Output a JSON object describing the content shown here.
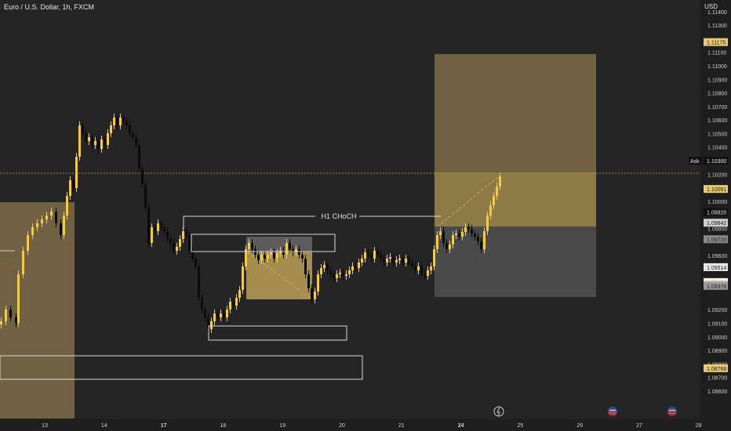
{
  "header": {
    "title": "Euro / U.S. Dollar, 1h, FXCM",
    "currency": "USD"
  },
  "price_axis": {
    "ticks": [
      {
        "label": "1.11400",
        "v": 1.114
      },
      {
        "label": "1.11300",
        "v": 1.113
      },
      {
        "label": "1.11100",
        "v": 1.111
      },
      {
        "label": "1.11000",
        "v": 1.11
      },
      {
        "label": "1.10900",
        "v": 1.109
      },
      {
        "label": "1.10800",
        "v": 1.108
      },
      {
        "label": "1.10700",
        "v": 1.107
      },
      {
        "label": "1.10600",
        "v": 1.106
      },
      {
        "label": "1.10500",
        "v": 1.105
      },
      {
        "label": "1.10400",
        "v": 1.104
      },
      {
        "label": "1.10200",
        "v": 1.102
      },
      {
        "label": "1.10000",
        "v": 1.1
      },
      {
        "label": "1.09800",
        "v": 1.098
      },
      {
        "label": "1.09600",
        "v": 1.096
      },
      {
        "label": "1.09200",
        "v": 1.092
      },
      {
        "label": "1.09100",
        "v": 1.091
      },
      {
        "label": "1.09000",
        "v": 1.09
      },
      {
        "label": "1.08900",
        "v": 1.089
      },
      {
        "label": "1.08800",
        "v": 1.088
      },
      {
        "label": "1.08700",
        "v": 1.087
      },
      {
        "label": "1.08600",
        "v": 1.086
      }
    ],
    "badges": [
      {
        "label": "1.11175",
        "v": 1.11175,
        "bg": "#e8c874",
        "fg": "#1a1a1a"
      },
      {
        "label": "1.10300",
        "v": 1.103,
        "bg": "#111111",
        "fg": "#e6e6e6",
        "prefix": "Ask"
      },
      {
        "label": "1.10091",
        "v": 1.10091,
        "bg": "#e8c874",
        "fg": "#1a1a1a"
      },
      {
        "label": "1.09920",
        "v": 1.0992,
        "bg": "#111111",
        "fg": "#e6e6e6"
      },
      {
        "label": "1.09842",
        "v": 1.09842,
        "bg": "#cfcfcf",
        "fg": "#1a1a1a"
      },
      {
        "label": "1.09720",
        "v": 1.0972,
        "bg": "#8a8a8a",
        "fg": "#1a1a1a"
      },
      {
        "label": "1.09514",
        "v": 1.09514,
        "bg": "#e8e8e8",
        "fg": "#1a1a1a"
      },
      {
        "label": "1.09404",
        "v": 1.09404,
        "bg": "#f2f2f2",
        "fg": "#1a1a1a"
      },
      {
        "label": "1.09384",
        "v": 1.09384,
        "bg": "#e8c874",
        "fg": "#1a1a1a"
      },
      {
        "label": "1.09376",
        "v": 1.09376,
        "bg": "#9a9a9a",
        "fg": "#1a1a1a"
      },
      {
        "label": "1.08768",
        "v": 1.08768,
        "bg": "#e8c874",
        "fg": "#1a1a1a"
      }
    ]
  },
  "time_axis": {
    "ticks": [
      {
        "label": "13",
        "bold": false
      },
      {
        "label": "14",
        "bold": false
      },
      {
        "label": "17",
        "bold": true
      },
      {
        "label": "18",
        "bold": false
      },
      {
        "label": "19",
        "bold": false
      },
      {
        "label": "20",
        "bold": false
      },
      {
        "label": "21",
        "bold": false
      },
      {
        "label": "24",
        "bold": true
      },
      {
        "label": "25",
        "bold": false
      },
      {
        "label": "26",
        "bold": false
      },
      {
        "label": "27",
        "bold": false
      },
      {
        "label": "28",
        "bold": false
      }
    ]
  },
  "annotations": {
    "choch_label": "H1 CHoCH"
  },
  "colors": {
    "background": "#252525",
    "bull": "#f2c94c",
    "bear": "#0b0b0b",
    "zone_gold": "#8e7a46",
    "zone_gray": "#5d5d5d"
  }
}
